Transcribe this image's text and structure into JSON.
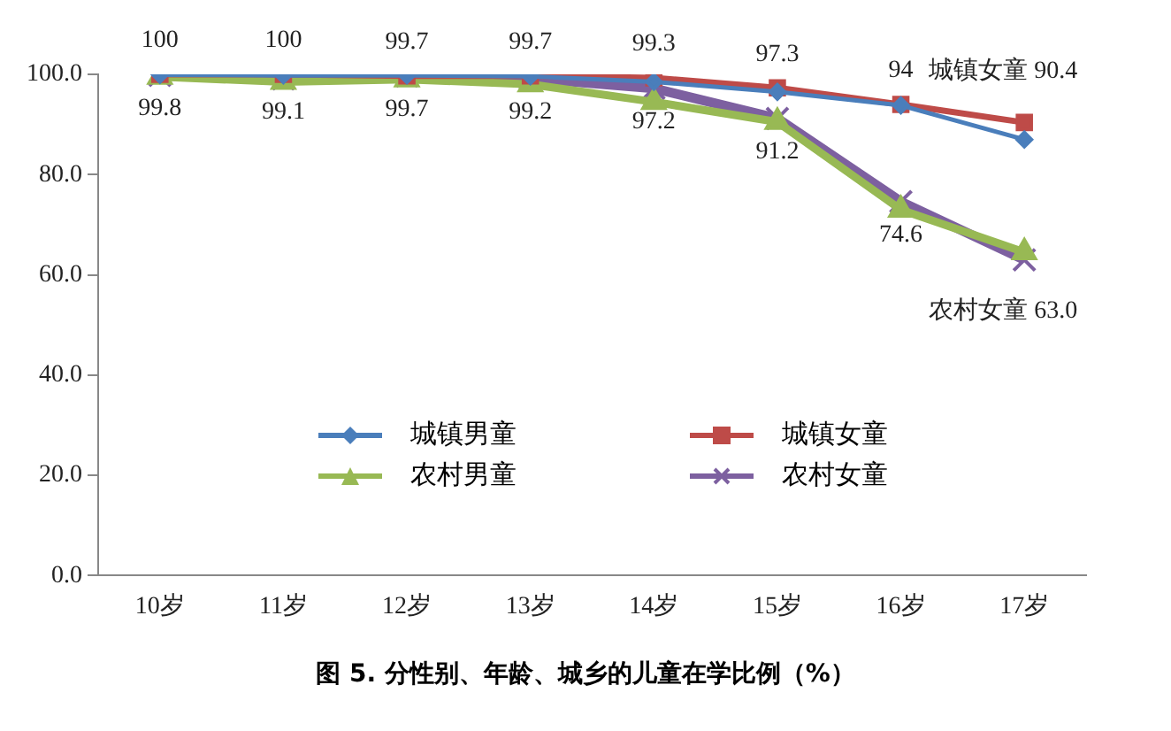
{
  "chart_data": {
    "type": "line",
    "title": "图 5. 分性别、年龄、城乡的儿童在学比例（%）",
    "categories": [
      "10岁",
      "11岁",
      "12岁",
      "13岁",
      "14岁",
      "15岁",
      "16岁",
      "17岁"
    ],
    "ylim": [
      0,
      100
    ],
    "yticks": [
      {
        "value": 0,
        "label": "0.0"
      },
      {
        "value": 20,
        "label": "20.0"
      },
      {
        "value": 40,
        "label": "40.0"
      },
      {
        "value": 60,
        "label": "60.0"
      },
      {
        "value": 80,
        "label": "80.0"
      },
      {
        "value": 100,
        "label": "100.0"
      }
    ],
    "grid": false,
    "legend": "bottom left",
    "series": [
      {
        "name": "城镇男童",
        "color": "#4a7ebb",
        "marker": "diamond",
        "values": [
          99.9,
          99.8,
          99.8,
          99.6,
          98.5,
          96.5,
          93.8,
          87.0
        ]
      },
      {
        "name": "城镇女童",
        "color": "#be4b48",
        "marker": "square",
        "values": [
          100,
          100,
          99.7,
          99.7,
          99.3,
          97.3,
          94,
          90.4
        ],
        "value_labels": [
          "100",
          "100",
          "99.7",
          "99.7",
          "99.3",
          "97.3",
          "94",
          "城镇女童 90.4"
        ]
      },
      {
        "name": "农村男童",
        "color": "#98b954",
        "marker": "triangle",
        "values": [
          99.5,
          98.5,
          99.0,
          98.0,
          94.5,
          90.5,
          73.0,
          64.5
        ]
      },
      {
        "name": "农村女童",
        "color": "#7d60a0",
        "marker": "cross",
        "values": [
          99.8,
          99.1,
          99.7,
          99.2,
          97.2,
          91.2,
          74.6,
          63.0
        ],
        "value_labels": [
          "99.8",
          "99.1",
          "99.7",
          "99.2",
          "97.2",
          "91.2",
          "74.6",
          "农村女童 63.0"
        ]
      }
    ]
  }
}
